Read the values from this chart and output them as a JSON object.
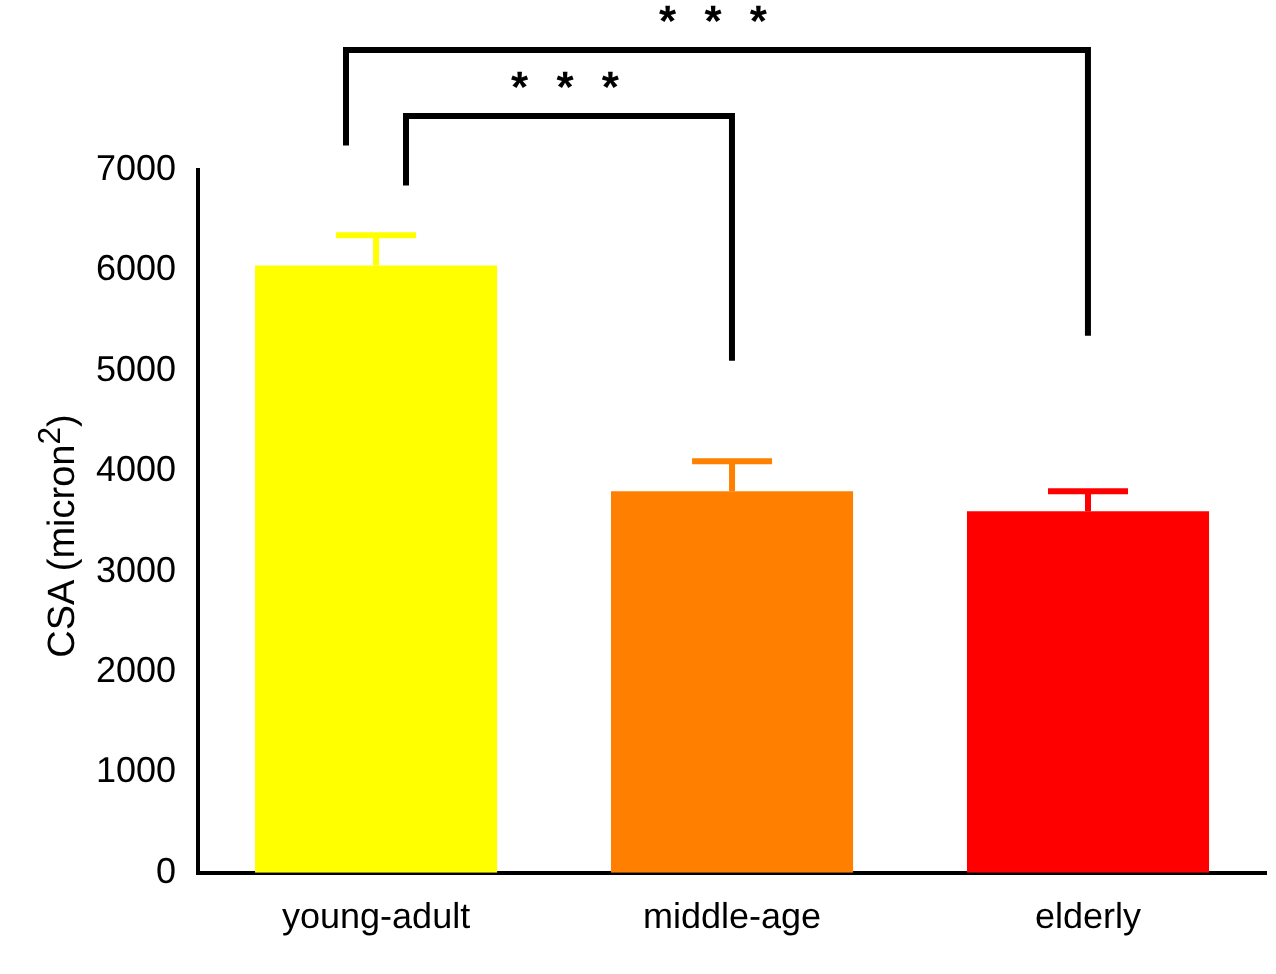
{
  "chart_data": {
    "type": "bar",
    "ylabel": "CSA (micron$^{2}$)",
    "categories": [
      "young-adult",
      "middle-age",
      "elderly"
    ],
    "values": [
      6050,
      3800,
      3600
    ],
    "colors": [
      "#ffff00",
      "#ff8000",
      "#ff0000"
    ],
    "errors": [
      [
        6050,
        6350
      ],
      [
        3800,
        4100
      ],
      [
        3600,
        3800
      ]
    ],
    "ylim": [
      0,
      7000
    ],
    "yticks": [
      0,
      1000,
      2000,
      3000,
      4000,
      5000,
      6000,
      7000
    ],
    "grid": false,
    "legend": false,
    "annotations": [
      "* * *",
      "* * *"
    ]
  }
}
